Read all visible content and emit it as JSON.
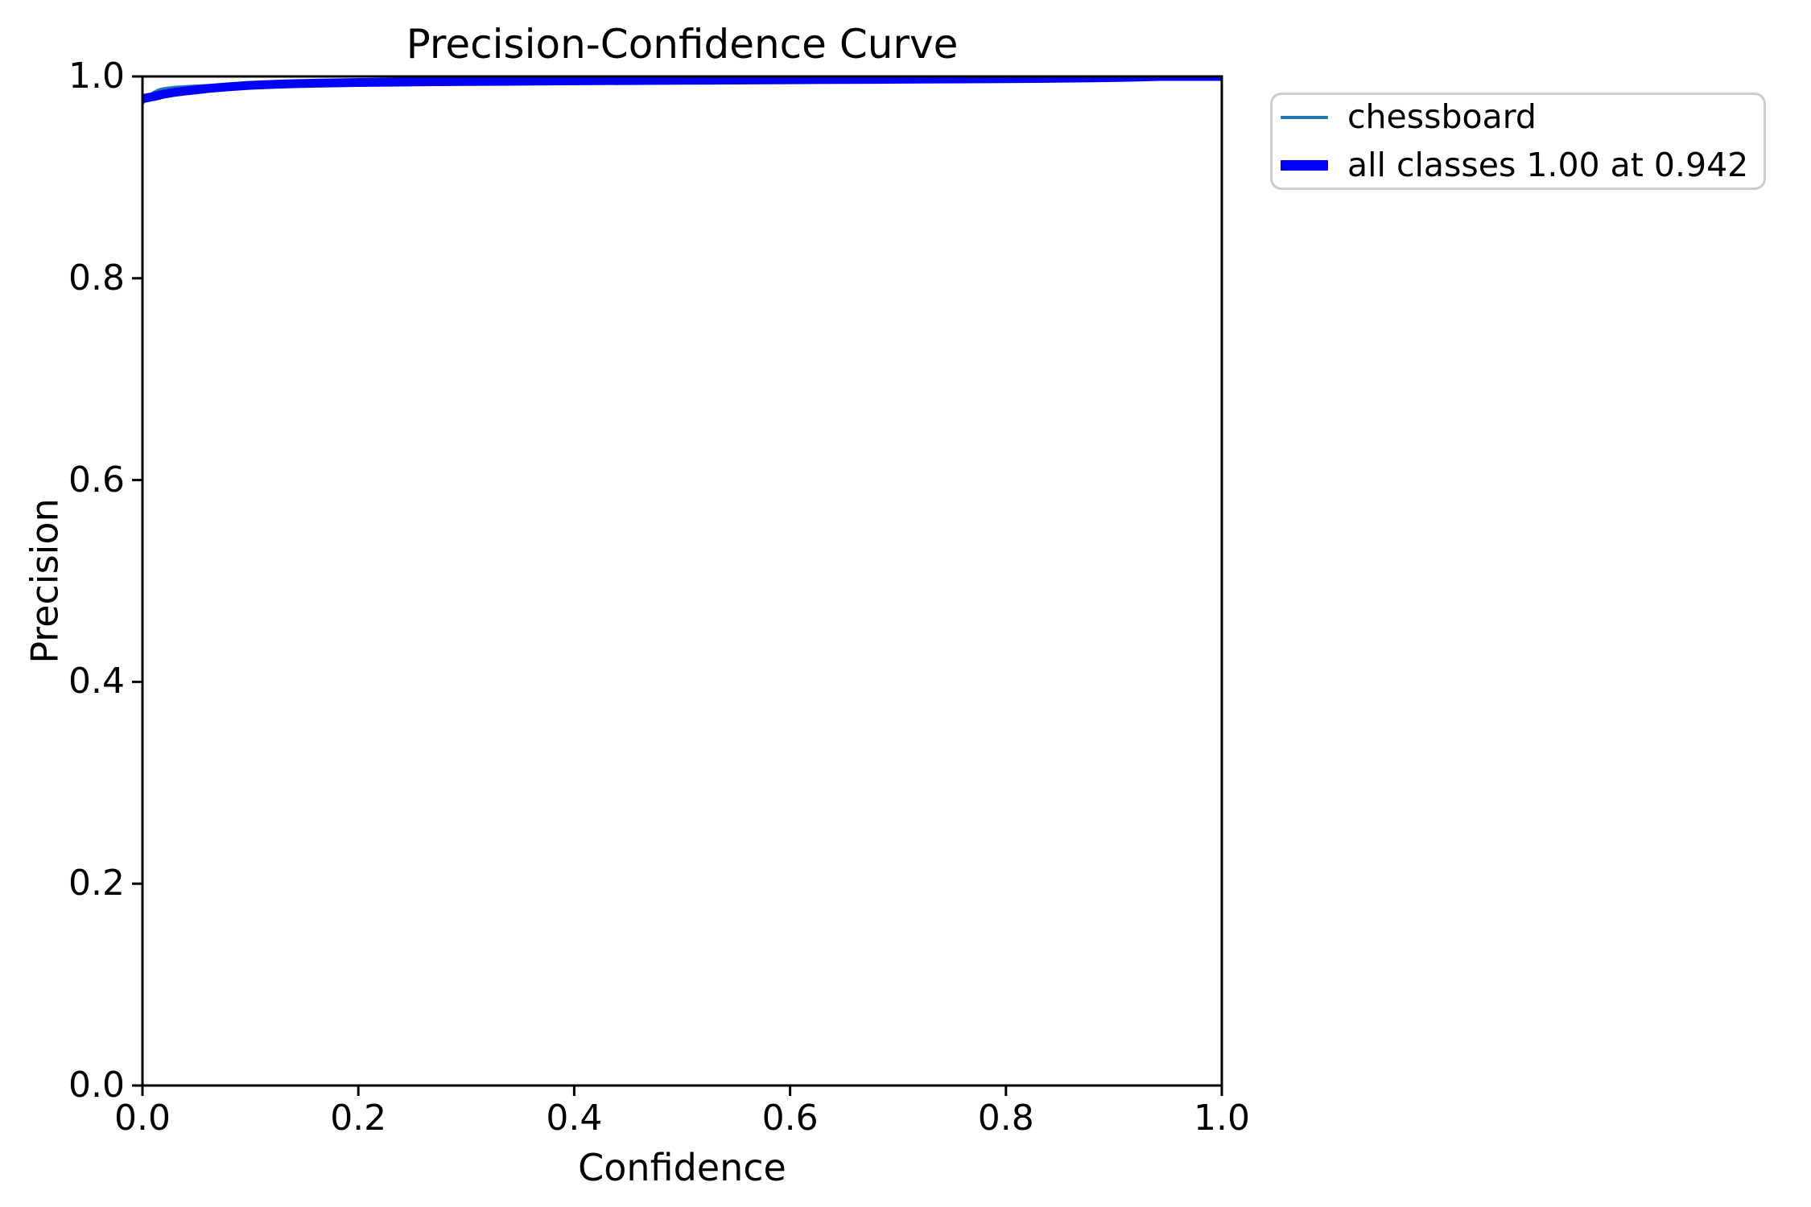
{
  "chart_data": {
    "type": "line",
    "title": "Precision-Confidence Curve",
    "xlabel": "Confidence",
    "ylabel": "Precision",
    "xlim": [
      0.0,
      1.0
    ],
    "ylim": [
      0.0,
      1.0
    ],
    "x_ticks": [
      "0.0",
      "0.2",
      "0.4",
      "0.6",
      "0.8",
      "1.0"
    ],
    "y_ticks": [
      "0.0",
      "0.2",
      "0.4",
      "0.6",
      "0.8",
      "1.0"
    ],
    "grid": false,
    "background_color": "#ffffff",
    "spine_color": "#000000",
    "legend": {
      "position": "outside-upper-right",
      "border_color": "#cccccc",
      "entries": [
        "chessboard",
        "all classes 1.00 at 0.942"
      ]
    },
    "series": [
      {
        "name": "chessboard",
        "color": "#1f77b4",
        "linewidth": 3.5,
        "points": [
          [
            0.0,
            0.9725
          ],
          [
            0.002,
            0.976
          ],
          [
            0.005,
            0.9795
          ],
          [
            0.01,
            0.984
          ],
          [
            0.015,
            0.9868
          ],
          [
            0.02,
            0.988
          ],
          [
            0.03,
            0.9893
          ],
          [
            0.04,
            0.99
          ],
          [
            0.05,
            0.9906
          ],
          [
            0.06,
            0.9911
          ],
          [
            0.08,
            0.992
          ],
          [
            0.1,
            0.9928
          ],
          [
            0.12,
            0.9934
          ],
          [
            0.15,
            0.994
          ],
          [
            0.2,
            0.9946
          ],
          [
            0.25,
            0.995
          ],
          [
            0.3,
            0.9953
          ],
          [
            0.4,
            0.9958
          ],
          [
            0.5,
            0.9963
          ],
          [
            0.6,
            0.9968
          ],
          [
            0.7,
            0.9973
          ],
          [
            0.8,
            0.9979
          ],
          [
            0.85,
            0.9984
          ],
          [
            0.9,
            0.999
          ],
          [
            0.93,
            0.9996
          ],
          [
            0.942,
            1.0
          ],
          [
            1.0,
            1.0
          ]
        ]
      },
      {
        "name": "all classes 1.00 at 0.942",
        "color": "#0000ff",
        "linewidth": 11,
        "points": [
          [
            0.0,
            0.978
          ],
          [
            0.005,
            0.979
          ],
          [
            0.01,
            0.98
          ],
          [
            0.02,
            0.9825
          ],
          [
            0.03,
            0.9843
          ],
          [
            0.04,
            0.9856
          ],
          [
            0.05,
            0.9868
          ],
          [
            0.06,
            0.988
          ],
          [
            0.08,
            0.9898
          ],
          [
            0.1,
            0.9912
          ],
          [
            0.12,
            0.9921
          ],
          [
            0.14,
            0.9928
          ],
          [
            0.166,
            0.9934
          ],
          [
            0.2,
            0.994
          ],
          [
            0.25,
            0.9946
          ],
          [
            0.3,
            0.995
          ],
          [
            0.35,
            0.9953
          ],
          [
            0.39,
            0.9956
          ],
          [
            0.45,
            0.9959
          ],
          [
            0.5,
            0.9962
          ],
          [
            0.56,
            0.9965
          ],
          [
            0.614,
            0.9968
          ],
          [
            0.68,
            0.9971
          ],
          [
            0.75,
            0.9975
          ],
          [
            0.8,
            0.9978
          ],
          [
            0.837,
            0.9981
          ],
          [
            0.88,
            0.9986
          ],
          [
            0.91,
            0.9991
          ],
          [
            0.93,
            0.9996
          ],
          [
            0.942,
            1.0
          ],
          [
            1.0,
            1.0
          ]
        ]
      }
    ]
  }
}
